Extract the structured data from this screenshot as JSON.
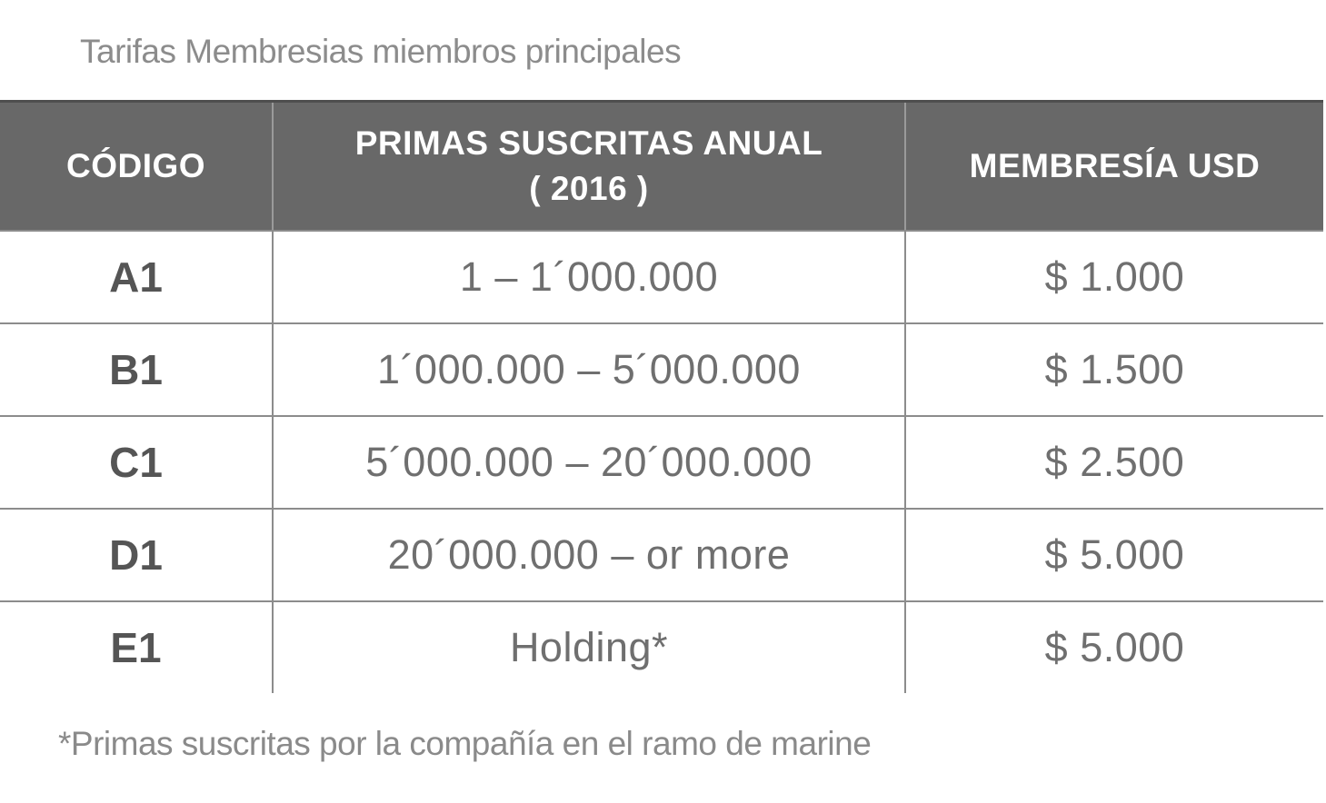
{
  "title": "Tarifas Membresias miembros principales",
  "colors": {
    "header_background": "#686868",
    "header_top_border": "#4e4e4e",
    "header_text": "#ffffff",
    "grid_line": "#8c8c8c",
    "body_text": "#6f6f6f",
    "code_text": "#555555",
    "title_text": "#8c8c8c"
  },
  "table": {
    "header": {
      "codigo": "CÓDIGO",
      "primas_line1": "PRIMAS SUSCRITAS ANUAL",
      "primas_line2": "( 2016 )",
      "membresia": "MEMBRESÍA USD"
    },
    "rows": [
      {
        "code": "A1",
        "primas": "1 – 1´000.000",
        "membresia": "$ 1.000"
      },
      {
        "code": "B1",
        "primas": "1´000.000 – 5´000.000",
        "membresia": "$ 1.500"
      },
      {
        "code": "C1",
        "primas": "5´000.000 – 20´000.000",
        "membresia": "$ 2.500"
      },
      {
        "code": "D1",
        "primas": "20´000.000 – or more",
        "membresia": "$ 5.000"
      },
      {
        "code": "E1",
        "primas": "Holding*",
        "membresia": "$ 5.000"
      }
    ]
  },
  "footnote": "*Primas suscritas por la compañía en el ramo de marine"
}
